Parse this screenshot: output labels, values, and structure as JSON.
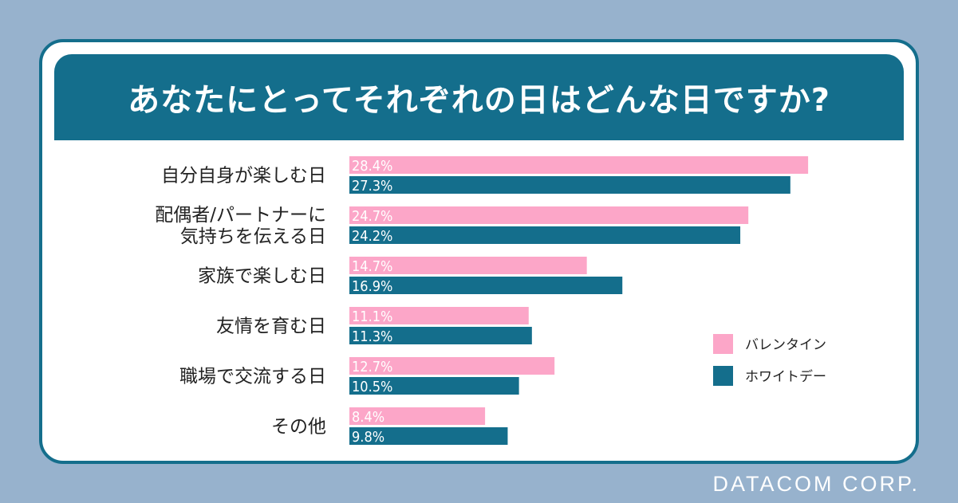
{
  "title": "あなたにとってそれぞれの日はどんな日ですか?",
  "brand": "DATACOM CORP.",
  "colors": {
    "background": "#97b2cd",
    "frame": "#146e8c",
    "valentine": "#fca6c8",
    "whiteday": "#146e8c"
  },
  "chart_data": {
    "type": "bar",
    "orientation": "horizontal",
    "title": "あなたにとってそれぞれの日はどんな日ですか?",
    "unit": "%",
    "xlim": [
      0,
      30
    ],
    "categories": [
      [
        "自分自身が楽しむ日"
      ],
      [
        "配偶者/パートナーに",
        "気持ちを伝える日"
      ],
      [
        "家族で楽しむ日"
      ],
      [
        "友情を育む日"
      ],
      [
        "職場で交流する日"
      ],
      [
        "その他"
      ]
    ],
    "series": [
      {
        "name": "バレンタイン",
        "color": "#fca6c8",
        "values": [
          28.4,
          24.7,
          14.7,
          11.1,
          12.7,
          8.4
        ]
      },
      {
        "name": "ホワイトデー",
        "color": "#146e8c",
        "values": [
          27.3,
          24.2,
          16.9,
          11.3,
          10.5,
          9.8
        ]
      }
    ],
    "legend_position": "right"
  }
}
